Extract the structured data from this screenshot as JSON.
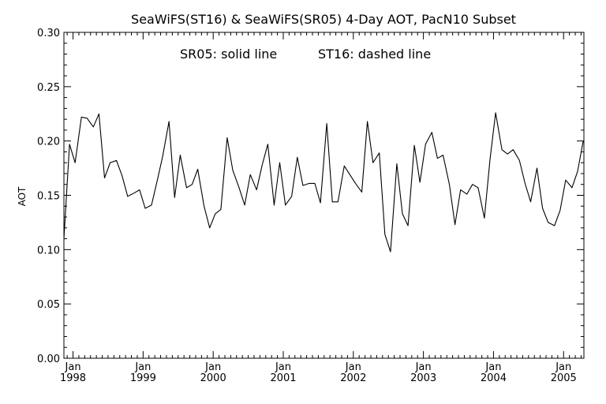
{
  "chart_data": {
    "type": "line",
    "title": "SeaWiFS(ST16) & SeaWiFS(SR05) 4-Day AOT, PacN10 Subset",
    "annotation_left": "SR05: solid line",
    "annotation_right": "ST16: dashed line",
    "xlabel": "",
    "ylabel": "AOT",
    "ylim": [
      0.0,
      0.3
    ],
    "xlim": [
      1997.87,
      2005.29
    ],
    "grid": false,
    "y_ticks": [
      "0.00",
      "0.05",
      "0.10",
      "0.15",
      "0.20",
      "0.25",
      "0.30"
    ],
    "x_ticks": [
      {
        "month": "Jan",
        "year": "1998"
      },
      {
        "month": "Jan",
        "year": "1999"
      },
      {
        "month": "Jan",
        "year": "2000"
      },
      {
        "month": "Jan",
        "year": "2001"
      },
      {
        "month": "Jan",
        "year": "2002"
      },
      {
        "month": "Jan",
        "year": "2003"
      },
      {
        "month": "Jan",
        "year": "2004"
      },
      {
        "month": "Jan",
        "year": "2005"
      }
    ],
    "series": [
      {
        "name": "SR05",
        "style": "solid",
        "x": [
          1997.87,
          1997.95,
          1998.03,
          1998.12,
          1998.2,
          1998.29,
          1998.37,
          1998.45,
          1998.53,
          1998.62,
          1998.7,
          1998.78,
          1998.87,
          1998.95,
          1999.03,
          1999.12,
          1999.2,
          1999.28,
          1999.37,
          1999.45,
          1999.53,
          1999.62,
          1999.7,
          1999.78,
          1999.87,
          1999.95,
          2000.03,
          2000.11,
          2000.2,
          2000.28,
          2000.37,
          2000.45,
          2000.53,
          2000.62,
          2000.7,
          2000.78,
          2000.87,
          2000.95,
          2001.03,
          2001.12,
          2001.2,
          2001.28,
          2001.37,
          2001.45,
          2001.53,
          2001.62,
          2001.7,
          2001.78,
          2001.87,
          2001.95,
          2002.03,
          2002.12,
          2002.2,
          2002.28,
          2002.37,
          2002.45,
          2002.53,
          2002.62,
          2002.7,
          2002.78,
          2002.87,
          2002.95,
          2003.03,
          2003.12,
          2003.2,
          2003.28,
          2003.37,
          2003.45,
          2003.53,
          2003.62,
          2003.7,
          2003.78,
          2003.87,
          2003.95,
          2004.03,
          2004.12,
          2004.2,
          2004.28,
          2004.37,
          2004.45,
          2004.53,
          2004.62,
          2004.7,
          2004.78,
          2004.87,
          2004.95,
          2005.03,
          2005.12,
          2005.2,
          2005.28
        ],
        "values": [
          0.11,
          0.197,
          0.18,
          0.222,
          0.221,
          0.213,
          0.225,
          0.166,
          0.18,
          0.182,
          0.168,
          0.149,
          0.152,
          0.155,
          0.138,
          0.141,
          0.163,
          0.186,
          0.218,
          0.148,
          0.187,
          0.157,
          0.16,
          0.174,
          0.14,
          0.12,
          0.133,
          0.137,
          0.203,
          0.173,
          0.157,
          0.141,
          0.169,
          0.155,
          0.178,
          0.197,
          0.141,
          0.18,
          0.141,
          0.149,
          0.185,
          0.159,
          0.161,
          0.161,
          0.143,
          0.216,
          0.144,
          0.144,
          0.177,
          0.169,
          0.161,
          0.153,
          0.218,
          0.18,
          0.189,
          0.114,
          0.098,
          0.179,
          0.133,
          0.122,
          0.196,
          0.162,
          0.197,
          0.208,
          0.184,
          0.187,
          0.16,
          0.123,
          0.155,
          0.151,
          0.16,
          0.157,
          0.129,
          0.183,
          0.226,
          0.192,
          0.188,
          0.192,
          0.182,
          0.161,
          0.144,
          0.175,
          0.138,
          0.125,
          0.122,
          0.136,
          0.164,
          0.157,
          0.172,
          0.2
        ]
      }
    ]
  }
}
